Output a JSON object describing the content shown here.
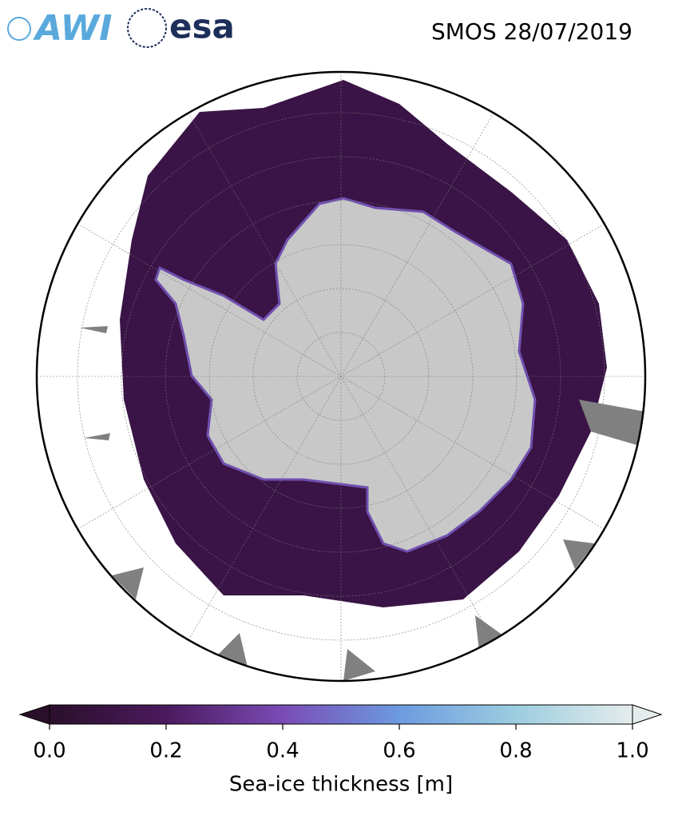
{
  "header": {
    "logos": [
      "AWI",
      "esa"
    ],
    "title": "SMOS 28/07/2019"
  },
  "colorbar": {
    "label": "Sea-ice thickness [m]",
    "lim": [
      0,
      1
    ],
    "ticks": [
      {
        "value": 0,
        "label": "0.0"
      },
      0.2,
      0.4,
      0.6,
      0.8,
      {
        "value": 1,
        "label": "1.0"
      }
    ],
    "colormap": [
      "#2a0f2a",
      "#4b1a5e",
      "#7a4bb5",
      "#6c9be0",
      "#9ccde0",
      "#e5ecec"
    ]
  }
}
